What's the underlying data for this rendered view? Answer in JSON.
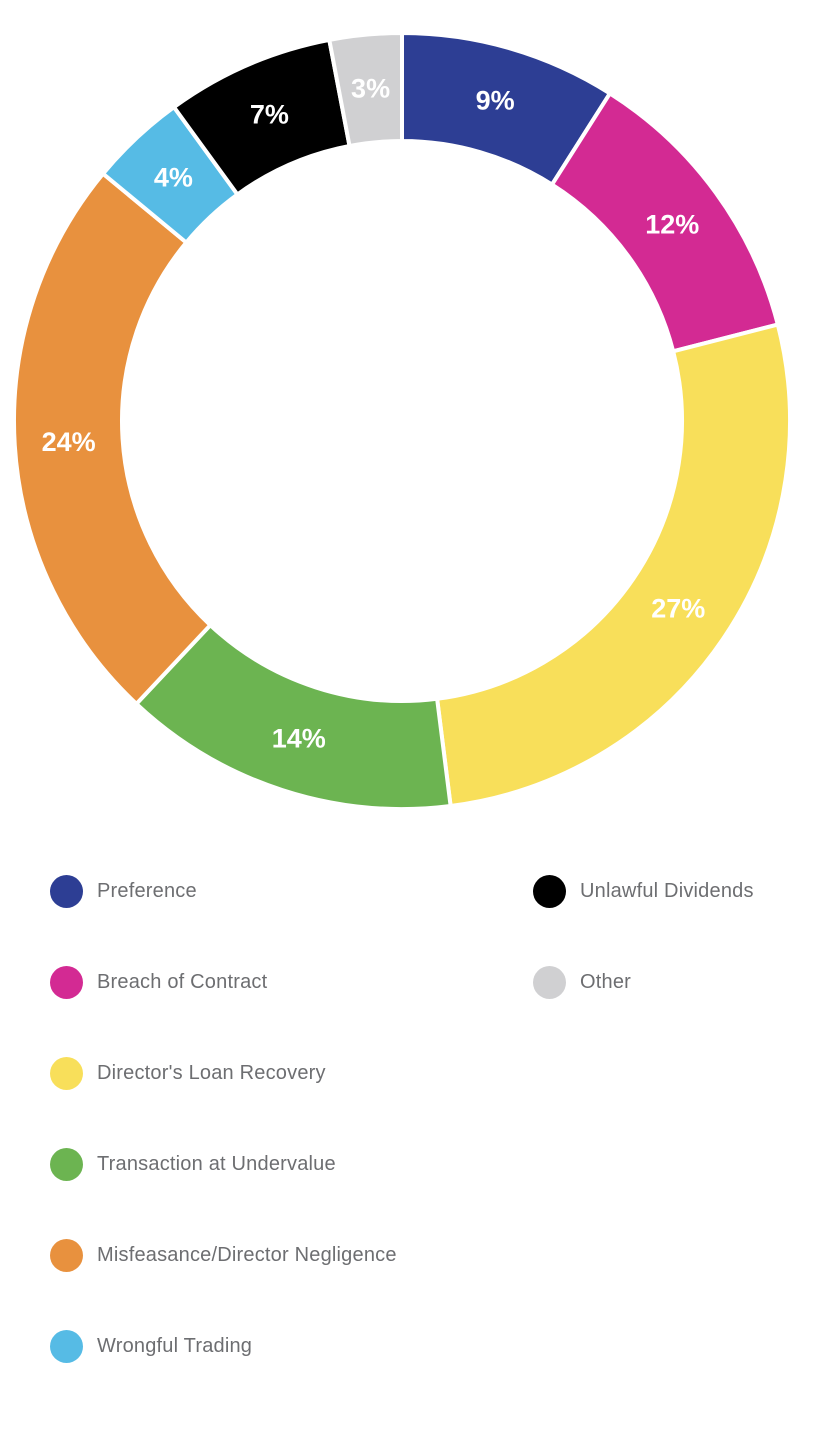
{
  "chart_data": {
    "type": "pie",
    "subtype": "donut",
    "title": "",
    "start_angle_deg": 0,
    "direction": "clockwise",
    "gap_color": "#ffffff",
    "label_color": "#ffffff",
    "legend_position": "bottom",
    "segments": [
      {
        "label": "Preference",
        "value": 9,
        "value_label": "9%",
        "color": "#2d3e94"
      },
      {
        "label": "Breach of Contract",
        "value": 12,
        "value_label": "12%",
        "color": "#d32a93"
      },
      {
        "label": "Director's Loan Recovery",
        "value": 27,
        "value_label": "27%",
        "color": "#f8df5a"
      },
      {
        "label": "Transaction at Undervalue",
        "value": 14,
        "value_label": "14%",
        "color": "#6cb451"
      },
      {
        "label": "Misfeasance/Director Negligence",
        "value": 24,
        "value_label": "24%",
        "color": "#e8913e"
      },
      {
        "label": "Wrongful Trading",
        "value": 4,
        "value_label": "4%",
        "color": "#56bbe5"
      },
      {
        "label": "Unlawful Dividends",
        "value": 7,
        "value_label": "7%",
        "color": "#000000"
      },
      {
        "label": "Other",
        "value": 3,
        "value_label": "3%",
        "color": "#d0d0d2"
      }
    ],
    "legend": {
      "text_color": "#6d6e71",
      "left_column_segment_indexes": [
        0,
        1,
        2,
        3,
        4,
        5
      ],
      "right_column_segment_indexes": [
        6,
        7
      ]
    }
  }
}
